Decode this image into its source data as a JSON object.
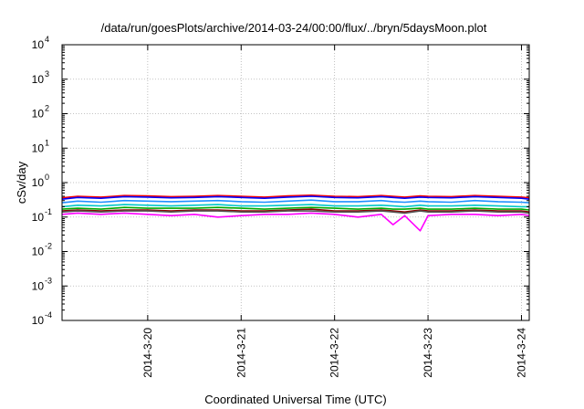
{
  "chart_data": {
    "type": "line",
    "title": "/data/run/goesPlots/archive/2014-03-24/00:00/flux/../bryn/5daysMoon.plot",
    "xlabel": "Coordinated Universal Time (UTC)",
    "ylabel": "cSv/day",
    "y_scale": "log",
    "ylim": [
      0.0001,
      10000
    ],
    "xlim": [
      "2014-03-19T02:00",
      "2014-03-24T02:00"
    ],
    "grid": true,
    "legend": "none",
    "x_ticks": [
      "2014-3-20",
      "2014-3-21",
      "2014-3-22",
      "2014-3-23",
      "2014-3-24"
    ],
    "y_ticks": [
      {
        "base": "10",
        "exp": "-4",
        "value": 0.0001
      },
      {
        "base": "10",
        "exp": "-3",
        "value": 0.001
      },
      {
        "base": "10",
        "exp": "-2",
        "value": 0.01
      },
      {
        "base": "10",
        "exp": "-1",
        "value": 0.1
      },
      {
        "base": "10",
        "exp": "0",
        "value": 1
      },
      {
        "base": "10",
        "exp": "1",
        "value": 10
      },
      {
        "base": "10",
        "exp": "2",
        "value": 100
      },
      {
        "base": "10",
        "exp": "3",
        "value": 1000
      },
      {
        "base": "10",
        "exp": "4",
        "value": 10000
      }
    ],
    "x": [
      "2014-03-19T02:00",
      "2014-03-19T06:00",
      "2014-03-19T12:00",
      "2014-03-19T18:00",
      "2014-03-20T00:00",
      "2014-03-20T06:00",
      "2014-03-20T12:00",
      "2014-03-20T18:00",
      "2014-03-21T00:00",
      "2014-03-21T06:00",
      "2014-03-21T12:00",
      "2014-03-21T18:00",
      "2014-03-22T00:00",
      "2014-03-22T06:00",
      "2014-03-22T12:00",
      "2014-03-22T15:00",
      "2014-03-22T18:00",
      "2014-03-22T22:00",
      "2014-03-23T00:00",
      "2014-03-23T06:00",
      "2014-03-23T12:00",
      "2014-03-23T18:00",
      "2014-03-24T00:00",
      "2014-03-24T02:00"
    ],
    "series": [
      {
        "color": "#ff0000",
        "values": [
          0.36,
          0.4,
          0.38,
          0.42,
          0.41,
          0.39,
          0.4,
          0.42,
          0.4,
          0.38,
          0.41,
          0.43,
          0.4,
          0.39,
          0.42,
          0.4,
          0.38,
          0.41,
          0.4,
          0.39,
          0.42,
          0.4,
          0.38,
          0.36
        ]
      },
      {
        "color": "#0000ff",
        "values": [
          0.33,
          0.37,
          0.35,
          0.39,
          0.38,
          0.36,
          0.37,
          0.39,
          0.37,
          0.35,
          0.38,
          0.4,
          0.37,
          0.36,
          0.39,
          0.37,
          0.35,
          0.38,
          0.37,
          0.36,
          0.39,
          0.37,
          0.35,
          0.33
        ]
      },
      {
        "color": "#1e90ff",
        "values": [
          0.26,
          0.29,
          0.27,
          0.3,
          0.29,
          0.28,
          0.29,
          0.3,
          0.28,
          0.27,
          0.29,
          0.31,
          0.28,
          0.28,
          0.3,
          0.28,
          0.27,
          0.29,
          0.28,
          0.27,
          0.3,
          0.28,
          0.27,
          0.26
        ]
      },
      {
        "color": "#00c8c8",
        "values": [
          0.2,
          0.22,
          0.21,
          0.23,
          0.22,
          0.21,
          0.22,
          0.23,
          0.21,
          0.21,
          0.22,
          0.23,
          0.21,
          0.21,
          0.22,
          0.21,
          0.2,
          0.22,
          0.21,
          0.21,
          0.22,
          0.21,
          0.2,
          0.2
        ]
      },
      {
        "color": "#00aa00",
        "values": [
          0.17,
          0.18,
          0.17,
          0.19,
          0.18,
          0.18,
          0.18,
          0.19,
          0.18,
          0.17,
          0.18,
          0.19,
          0.18,
          0.17,
          0.18,
          0.17,
          0.17,
          0.18,
          0.17,
          0.17,
          0.18,
          0.17,
          0.17,
          0.16
        ]
      },
      {
        "color": "#8b0000",
        "values": [
          0.15,
          0.16,
          0.15,
          0.16,
          0.16,
          0.15,
          0.16,
          0.16,
          0.15,
          0.15,
          0.16,
          0.17,
          0.15,
          0.15,
          0.16,
          0.15,
          0.14,
          0.16,
          0.15,
          0.15,
          0.16,
          0.15,
          0.15,
          0.14
        ]
      },
      {
        "color": "#ff00ff",
        "values": [
          0.12,
          0.13,
          0.12,
          0.13,
          0.12,
          0.11,
          0.12,
          0.1,
          0.11,
          0.12,
          0.12,
          0.13,
          0.12,
          0.1,
          0.12,
          0.06,
          0.11,
          0.04,
          0.11,
          0.12,
          0.12,
          0.11,
          0.12,
          0.11
        ]
      },
      {
        "color": "#555555",
        "values": [
          0.14,
          0.15,
          0.14,
          0.15,
          0.15,
          0.14,
          0.15,
          0.15,
          0.14,
          0.14,
          0.15,
          0.15,
          0.14,
          0.14,
          0.15,
          0.14,
          0.13,
          0.15,
          0.14,
          0.14,
          0.15,
          0.14,
          0.14,
          0.13
        ]
      }
    ]
  }
}
